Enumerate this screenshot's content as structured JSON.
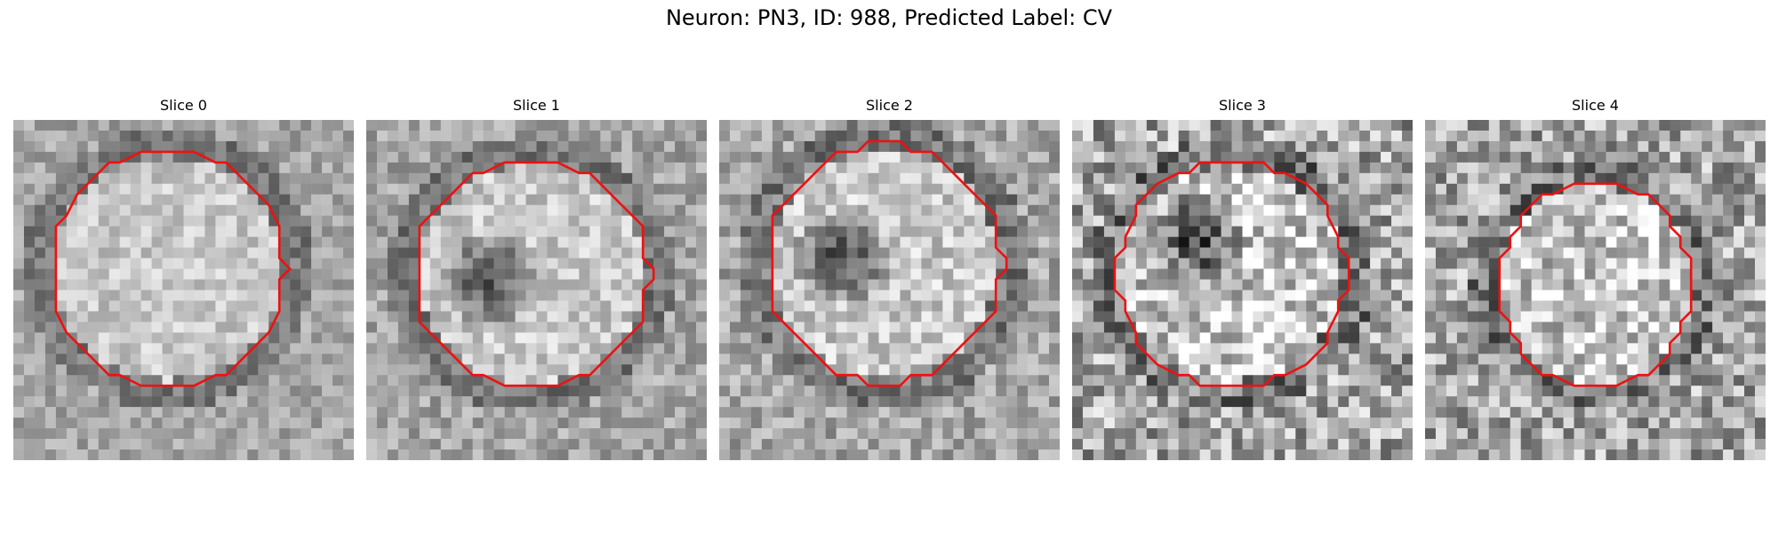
{
  "figure": {
    "title": "Neuron: PN3, ID: 988, Predicted Label: CV"
  },
  "panels": [
    {
      "title": "Slice 0",
      "dark_center": false
    },
    {
      "title": "Slice 1",
      "dark_center": true
    },
    {
      "title": "Slice 2",
      "dark_center": true
    },
    {
      "title": "Slice 3",
      "dark_center": true
    },
    {
      "title": "Slice 4",
      "dark_center": false
    }
  ],
  "colors": {
    "contour": "#ee1111",
    "background": "#ffffff"
  }
}
